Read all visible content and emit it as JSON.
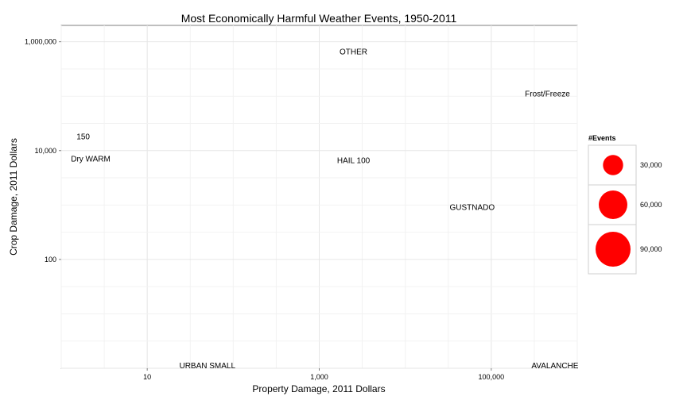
{
  "chart_data": {
    "type": "scatter",
    "title": "Most Economically Harmful Weather Events, 1950-2011",
    "xlabel": "Property Damage, 2011 Dollars",
    "ylabel": "Crop Damage, 2011 Dollars",
    "x_scale": "log10",
    "y_scale": "log10",
    "xlim": [
      1,
      1000000
    ],
    "ylim": [
      1,
      2000000
    ],
    "x_ticks": [
      10,
      1000,
      100000
    ],
    "x_tick_labels": [
      "10",
      "1,000",
      "100,000"
    ],
    "y_ticks": [
      100,
      10000,
      1000000
    ],
    "y_tick_labels": [
      "100",
      "10,000",
      "1,000,000"
    ],
    "grid": true,
    "point_color": "#ff0000",
    "points": [
      {
        "label": "OTHER",
        "x": 2500,
        "y": 650000
      },
      {
        "label": "Frost/Freeze",
        "x": 450000,
        "y": 110000
      },
      {
        "label": "150",
        "x": 1.8,
        "y": 18000
      },
      {
        "label": "Dry WARM",
        "x": 2.2,
        "y": 7000
      },
      {
        "label": "HAIL 100",
        "x": 2500,
        "y": 6500
      },
      {
        "label": "GUSTNADO",
        "x": 60000,
        "y": 900
      },
      {
        "label": "URBAN SMALL",
        "x": 50,
        "y": 1.1
      },
      {
        "label": "AVALANCHE",
        "x": 550000,
        "y": 1.1
      }
    ],
    "legend": {
      "title": "#Events",
      "placement": "right",
      "entries": [
        {
          "label": "30,000",
          "value": 30000
        },
        {
          "label": "60,000",
          "value": 60000
        },
        {
          "label": "90,000",
          "value": 90000
        }
      ]
    }
  }
}
